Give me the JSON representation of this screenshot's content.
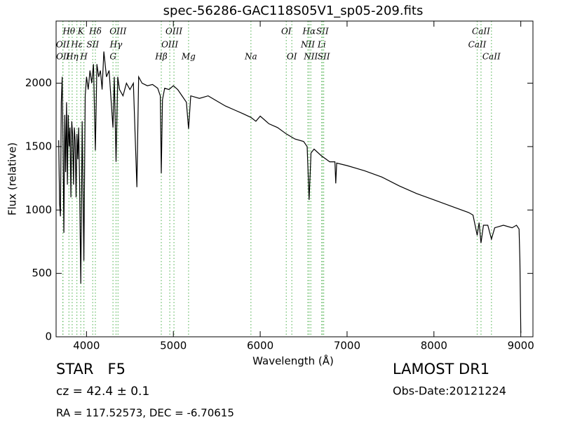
{
  "chart_data": {
    "type": "line",
    "title": "spec-56286-GAC118S05V1_sp05-209.fits",
    "x_label": "Wavelength (Å)",
    "y_label": "Flux (relative)",
    "xlim": [
      3650,
      9140
    ],
    "ylim": [
      0,
      2490
    ],
    "xticks": [
      4000,
      5000,
      6000,
      7000,
      8000,
      9000
    ],
    "yticks": [
      0,
      500,
      1000,
      1500,
      2000
    ],
    "color": "#000000",
    "line_color": "#66bb66",
    "x": [
      3680,
      3690,
      3700,
      3710,
      3720,
      3730,
      3740,
      3750,
      3760,
      3770,
      3780,
      3790,
      3800,
      3810,
      3820,
      3830,
      3840,
      3850,
      3860,
      3870,
      3880,
      3890,
      3900,
      3910,
      3920,
      3934,
      3950,
      3970,
      3985,
      4000,
      4020,
      4040,
      4060,
      4080,
      4102,
      4120,
      4140,
      4160,
      4180,
      4200,
      4230,
      4260,
      4280,
      4305,
      4320,
      4340,
      4360,
      4380,
      4420,
      4460,
      4500,
      4540,
      4580,
      4600,
      4640,
      4700,
      4760,
      4820,
      4850,
      4861,
      4875,
      4900,
      4950,
      5000,
      5050,
      5100,
      5150,
      5175,
      5200,
      5300,
      5400,
      5500,
      5600,
      5700,
      5800,
      5893,
      5950,
      6000,
      6100,
      6200,
      6300,
      6400,
      6500,
      6540,
      6563,
      6585,
      6620,
      6700,
      6800,
      6860,
      6870,
      6880,
      7000,
      7200,
      7400,
      7600,
      7800,
      8000,
      8200,
      8400,
      8450,
      8498,
      8520,
      8542,
      8570,
      8620,
      8662,
      8700,
      8800,
      8900,
      8950,
      8980,
      8990,
      9000
    ],
    "values": [
      1550,
      1050,
      950,
      1850,
      2050,
      1500,
      820,
      1750,
      1300,
      1850,
      1200,
      1750,
      1500,
      1650,
      1100,
      1700,
      1600,
      1200,
      1650,
      1550,
      1100,
      1600,
      1400,
      1650,
      1250,
      420,
      1700,
      600,
      1900,
      2050,
      1950,
      2100,
      2000,
      2150,
      1470,
      2150,
      2050,
      2100,
      1950,
      2250,
      2050,
      2100,
      1900,
      1650,
      2050,
      1380,
      2050,
      1950,
      1900,
      2000,
      1950,
      2000,
      1180,
      2050,
      2000,
      1980,
      1990,
      1960,
      1900,
      1290,
      1870,
      1960,
      1950,
      1980,
      1950,
      1900,
      1850,
      1640,
      1900,
      1880,
      1900,
      1860,
      1820,
      1790,
      1760,
      1730,
      1700,
      1740,
      1680,
      1650,
      1600,
      1560,
      1540,
      1500,
      1080,
      1450,
      1480,
      1430,
      1380,
      1380,
      1210,
      1370,
      1350,
      1310,
      1260,
      1190,
      1130,
      1080,
      1030,
      980,
      960,
      800,
      900,
      740,
      880,
      880,
      770,
      860,
      880,
      860,
      880,
      850,
      600,
      30
    ],
    "lines": [
      {
        "label": "Hθ",
        "x": 3798
      },
      {
        "label": "K",
        "x": 3934
      },
      {
        "label": "Hδ",
        "x": 4102
      },
      {
        "label": "OIII",
        "x": 4363
      },
      {
        "label": "OIII",
        "x": 5007
      },
      {
        "label": "OI",
        "x": 6300
      },
      {
        "label": "Hα",
        "x": 6563
      },
      {
        "label": "SII",
        "x": 6716
      },
      {
        "label": "CaII",
        "x": 8542
      },
      {
        "label": "OII",
        "x": 3727
      },
      {
        "label": "Hε",
        "x": 3889
      },
      {
        "label": "SII",
        "x": 4072
      },
      {
        "label": "Hγ",
        "x": 4340
      },
      {
        "label": "OIII",
        "x": 4959
      },
      {
        "label": "NII",
        "x": 6548
      },
      {
        "label": "Li",
        "x": 6708
      },
      {
        "label": "CaII",
        "x": 8498
      },
      {
        "label": "OII",
        "x": 3729
      },
      {
        "label": "Hη",
        "x": 3835
      },
      {
        "label": "H",
        "x": 3970
      },
      {
        "label": "G",
        "x": 4305
      },
      {
        "label": "Hβ",
        "x": 4861
      },
      {
        "label": "Mg",
        "x": 5175
      },
      {
        "label": "Na",
        "x": 5893
      },
      {
        "label": "OI",
        "x": 6364
      },
      {
        "label": "NII",
        "x": 6583
      },
      {
        "label": "SII",
        "x": 6731
      },
      {
        "label": "CaII",
        "x": 8662
      }
    ]
  },
  "footer": {
    "object": "STAR   F5",
    "cz": "cz = 42.4 ± 0.1",
    "coords": "RA = 117.52573, DEC = -6.70615",
    "survey": "LAMOST DR1",
    "obs_date": "Obs-Date:20121224"
  }
}
